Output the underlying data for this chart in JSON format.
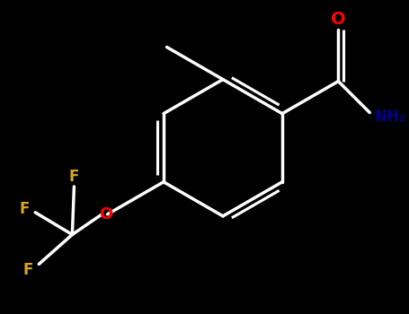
{
  "background_color": "#000000",
  "bond_color": "#ffffff",
  "O_color": "#ff0000",
  "N_color": "#00008b",
  "F_color": "#daa520",
  "figsize": [
    4.55,
    3.5
  ],
  "dpi": 100,
  "xlim": [
    -0.5,
    0.5
  ],
  "ylim": [
    -0.45,
    0.4
  ]
}
